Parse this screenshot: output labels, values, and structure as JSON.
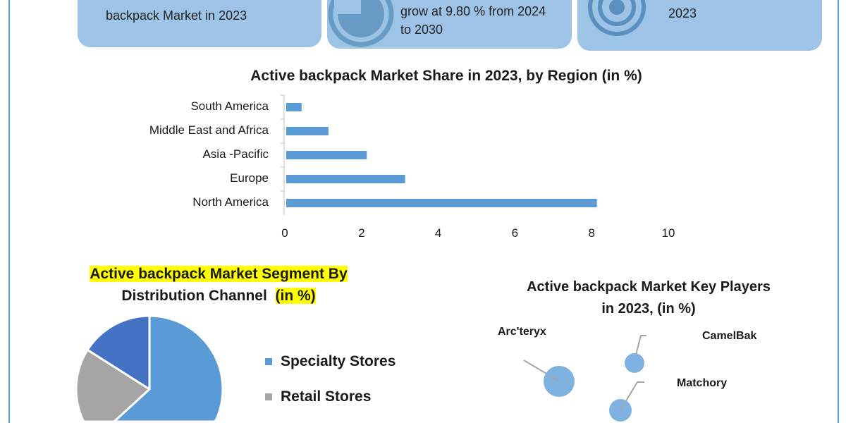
{
  "cards": [
    {
      "text": "backpack Market in 2023",
      "icon": "pie-icon"
    },
    {
      "line1": "grow at 9.80 % from 2024",
      "line2": "to 2030",
      "icon": "pie-chart-icon"
    },
    {
      "text": "2023",
      "icon": "target-icon"
    }
  ],
  "colors": {
    "accent": "#5b9bd5",
    "card": "#9dc3e6",
    "slice3": "#4472c4",
    "grey": "#a5a5a5",
    "highlight": "#ffff00"
  },
  "chart_data": [
    {
      "type": "bar",
      "orientation": "horizontal",
      "title": "Active backpack Market Share in 2023, by Region (in %)",
      "categories": [
        "South America",
        "Middle East and Africa",
        "Asia -Pacific",
        "Europe",
        "North America"
      ],
      "values": [
        0.4,
        1.1,
        2.1,
        3.1,
        8.1
      ],
      "xlim": [
        0,
        10
      ],
      "xticks": [
        "0",
        "2",
        "4",
        "6",
        "8",
        "10"
      ]
    },
    {
      "type": "pie",
      "title_line1": "Active backpack Market Segment By",
      "title_line2a": "Distribution Channel",
      "title_line2b": "(in %)",
      "slices": [
        {
          "name": "Specialty Stores",
          "value": 58,
          "color": "#5b9bd5"
        },
        {
          "name": "Retail Stores",
          "value": 26,
          "color": "#a5a5a5"
        },
        {
          "name": "",
          "value": 16,
          "color": "#4472c4"
        }
      ]
    },
    {
      "type": "scatter",
      "title_line1": "Active backpack Market Key Players",
      "title_line2": "in 2023, (in %)",
      "labels": [
        "Arc'teryx",
        "CamelBak",
        "Matchory"
      ]
    }
  ]
}
